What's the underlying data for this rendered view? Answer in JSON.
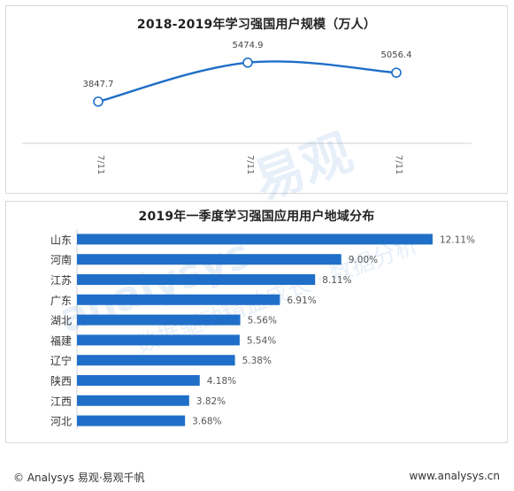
{
  "chart_data": [
    {
      "type": "line",
      "title": "2018-2019年学习强国用户规模（万人）",
      "categories": [
        "7/11",
        "7/11",
        "7/11"
      ],
      "series": [
        {
          "values": [
            3847.7,
            5474.9,
            5056.4
          ]
        }
      ],
      "data_labels": [
        "3847.7",
        "5474.9",
        "5056.4"
      ],
      "ylim": [
        0,
        6000
      ],
      "grid": false,
      "color": "#1f6fc8"
    },
    {
      "type": "bar",
      "orientation": "horizontal",
      "title": "2019年一季度学习强国应用用户地域分布",
      "categories": [
        "山东",
        "河南",
        "江苏",
        "广东",
        "湖北",
        "福建",
        "辽宁",
        "陕西",
        "江西",
        "河北"
      ],
      "values": [
        12.11,
        9.0,
        8.11,
        6.91,
        5.56,
        5.54,
        5.38,
        4.18,
        3.82,
        3.68
      ],
      "value_labels": [
        "12.11%",
        "9.00%",
        "8.11%",
        "6.91%",
        "5.56%",
        "5.54%",
        "5.38%",
        "4.18%",
        "3.82%",
        "3.68%"
      ],
      "xlim": [
        0,
        12.11
      ],
      "grid": false,
      "color": "#1f6fc8"
    }
  ],
  "footer": {
    "left": "© Analysys 易观·易观千帆",
    "right": "www.analysys.cn"
  },
  "watermark": {
    "brand": "易观",
    "latin": "analysys",
    "tagline": "数据驱动精益成长 · 数据分析"
  }
}
